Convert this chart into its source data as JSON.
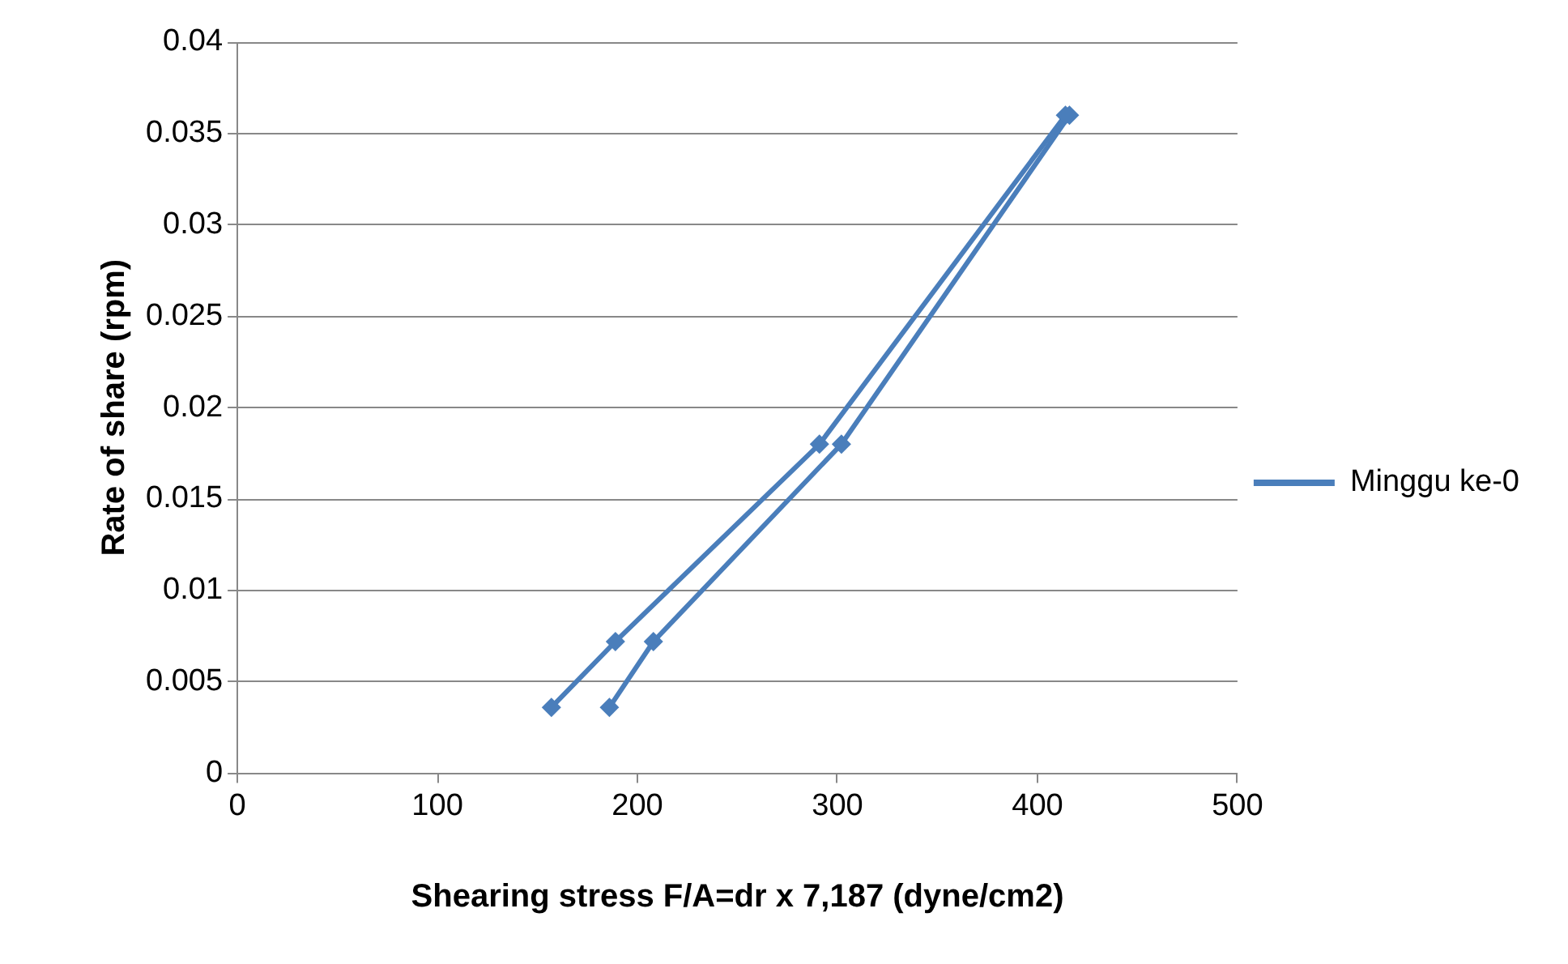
{
  "chart_data": {
    "type": "line",
    "xlabel": "Shearing stress F/A=dr x 7,187 (dyne/cm2)",
    "ylabel": "Rate of share (rpm)",
    "series": [
      {
        "name": "Minggu ke-0",
        "color": "#4a7ebb",
        "x": [
          157,
          189,
          291,
          414
        ],
        "values": [
          0.0036,
          0.0072,
          0.018,
          0.036
        ]
      },
      {
        "color": "#4a7ebb",
        "x": [
          186,
          208,
          302,
          416
        ],
        "values": [
          0.0036,
          0.0072,
          0.018,
          0.036
        ]
      }
    ],
    "xlim": [
      0,
      500
    ],
    "xticks": [
      0,
      100,
      200,
      300,
      400,
      500
    ],
    "ylim": [
      0,
      0.04
    ],
    "yticks": [
      0,
      0.005,
      0.01,
      0.015,
      0.02,
      0.025,
      0.03,
      0.035,
      0.04
    ],
    "grid": "y",
    "legend": "right",
    "marker": "diamond",
    "line_style": "solid"
  }
}
